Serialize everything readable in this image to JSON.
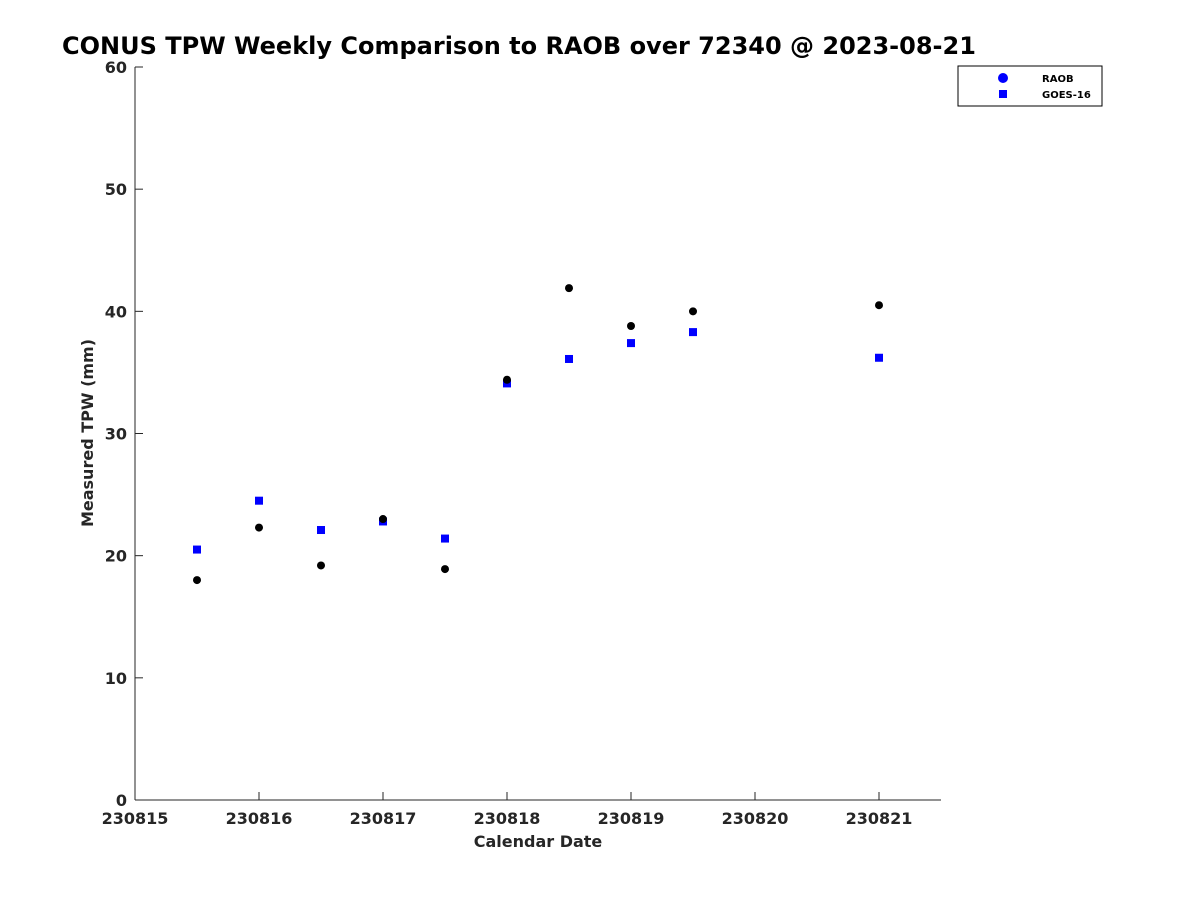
{
  "chart_data": {
    "type": "scatter",
    "title": "CONUS TPW Weekly Comparison to RAOB over 72340 @ 2023-08-21",
    "xlabel": "Calendar Date",
    "ylabel": "Measured TPW (mm)",
    "xlim": [
      230815,
      230821.5
    ],
    "ylim": [
      0,
      60
    ],
    "xticks": [
      230815,
      230816,
      230817,
      230818,
      230819,
      230820,
      230821
    ],
    "yticks": [
      0,
      10,
      20,
      30,
      40,
      50,
      60
    ],
    "legend_position": "top-right",
    "grid": false,
    "series": [
      {
        "name": "RAOB",
        "marker": "circle",
        "color": "#000000",
        "legend_color": "#0000ff",
        "x": [
          230815.5,
          230816.0,
          230816.5,
          230817.0,
          230817.5,
          230818.0,
          230818.5,
          230819.0,
          230819.5,
          230821.0
        ],
        "y": [
          18.0,
          22.3,
          19.2,
          23.0,
          18.9,
          34.4,
          41.9,
          38.8,
          40.0,
          40.5
        ]
      },
      {
        "name": "GOES-16",
        "marker": "square",
        "color": "#0000ff",
        "legend_color": "#0000ff",
        "x": [
          230815.5,
          230816.0,
          230816.5,
          230817.0,
          230817.5,
          230818.0,
          230818.5,
          230819.0,
          230819.5,
          230821.0
        ],
        "y": [
          20.5,
          24.5,
          22.1,
          22.8,
          21.4,
          34.1,
          36.1,
          37.4,
          38.3,
          36.2
        ]
      }
    ]
  }
}
